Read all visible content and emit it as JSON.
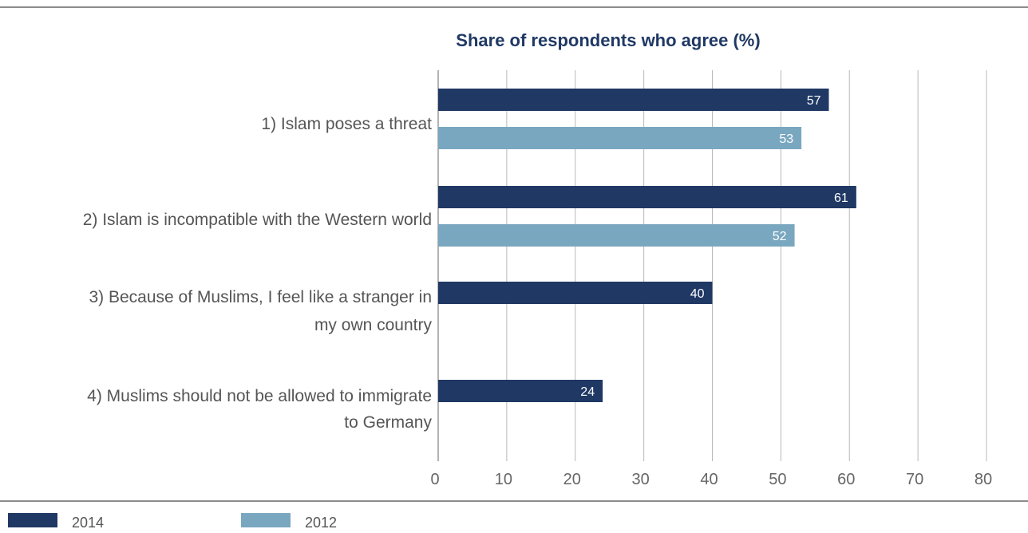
{
  "chart_data": {
    "type": "bar",
    "orientation": "horizontal",
    "title": "Share of respondents who agree (%)",
    "categories": [
      [
        "1) Islam poses a threat"
      ],
      [
        "2) Islam is incompatible with the Western world"
      ],
      [
        "3) Because of Muslims, I feel like a stranger in",
        "my own country"
      ],
      [
        "4) Muslims should not be allowed to immigrate",
        "to Germany"
      ]
    ],
    "series": [
      {
        "name": "2014",
        "color": "#1f3864",
        "values": [
          57,
          61,
          40,
          24
        ]
      },
      {
        "name": "2012",
        "color": "#7aa7c0",
        "values": [
          53,
          52,
          null,
          null
        ]
      }
    ],
    "xlim": [
      0,
      80
    ],
    "xticks": [
      0,
      10,
      20,
      30,
      40,
      50,
      60,
      70,
      80
    ],
    "grid": true,
    "legend_position": "bottom-left"
  }
}
